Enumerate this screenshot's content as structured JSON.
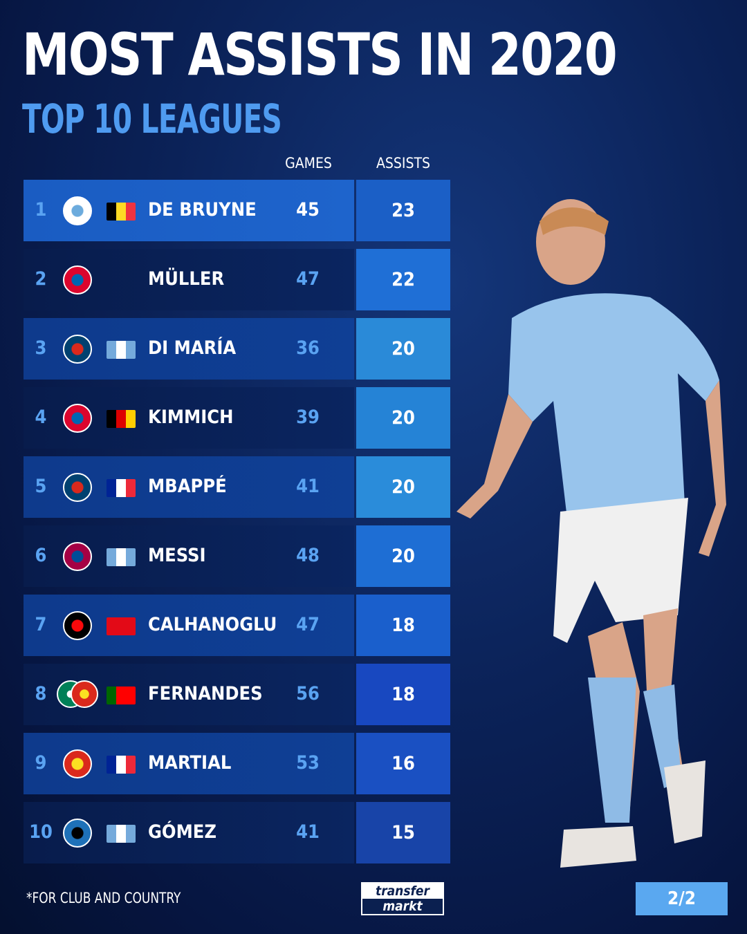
{
  "title": "MOST ASSISTS IN 2020",
  "subtitle": "TOP 10 LEAGUES",
  "columns": {
    "games": "GAMES",
    "assists": "ASSISTS"
  },
  "rows": [
    {
      "rank": "1",
      "name": "DE BRUYNE",
      "games": "45",
      "assists": "23",
      "club": "manchester-city",
      "flag": [
        "#000000",
        "#fdda24",
        "#ef3340"
      ],
      "assist_color": "#1b5fc6"
    },
    {
      "rank": "2",
      "name": "MÜLLER",
      "games": "47",
      "assists": "22",
      "club": "bayern-munich",
      "flag": null,
      "assist_color": "#1f6fd6"
    },
    {
      "rank": "3",
      "name": "DI MARÍA",
      "games": "36",
      "assists": "20",
      "club": "psg",
      "flag": [
        "#75aadb",
        "#ffffff",
        "#75aadb"
      ],
      "assist_color": "#2a8ad8"
    },
    {
      "rank": "4",
      "name": "KIMMICH",
      "games": "39",
      "assists": "20",
      "club": "bayern-munich",
      "flag": [
        "#000000",
        "#dd0000",
        "#ffce00"
      ],
      "assist_color": "#2583d6"
    },
    {
      "rank": "5",
      "name": "MBAPPÉ",
      "games": "41",
      "assists": "20",
      "club": "psg",
      "flag": [
        "#002395",
        "#ffffff",
        "#ed2939"
      ],
      "assist_color": "#2a8cda"
    },
    {
      "rank": "6",
      "name": "MESSI",
      "games": "48",
      "assists": "20",
      "club": "barcelona",
      "flag": [
        "#75aadb",
        "#ffffff",
        "#75aadb"
      ],
      "assist_color": "#1e6ed4"
    },
    {
      "rank": "7",
      "name": "CALHANOGLU",
      "games": "47",
      "assists": "18",
      "club": "ac-milan",
      "flag": [
        "#e30a17"
      ],
      "assist_color": "#1a5fcc"
    },
    {
      "rank": "8",
      "name": "FERNANDES",
      "games": "56",
      "assists": "18",
      "club": "sporting-manchester-united",
      "flag": [
        "#006600",
        "#ff0000",
        "#ff0000"
      ],
      "assist_color": "#1848c0"
    },
    {
      "rank": "9",
      "name": "MARTIAL",
      "games": "53",
      "assists": "16",
      "club": "manchester-united",
      "flag": [
        "#002395",
        "#ffffff",
        "#ed2939"
      ],
      "assist_color": "#1a50c2"
    },
    {
      "rank": "10",
      "name": "GÓMEZ",
      "games": "41",
      "assists": "15",
      "club": "atalanta",
      "flag": [
        "#75aadb",
        "#ffffff",
        "#75aadb"
      ],
      "assist_color": "#1844a8"
    }
  ],
  "footnote": "*FOR CLUB AND COUNTRY",
  "logo": {
    "line1": "transfer",
    "line2": "markt"
  },
  "page_indicator": "2/2"
}
